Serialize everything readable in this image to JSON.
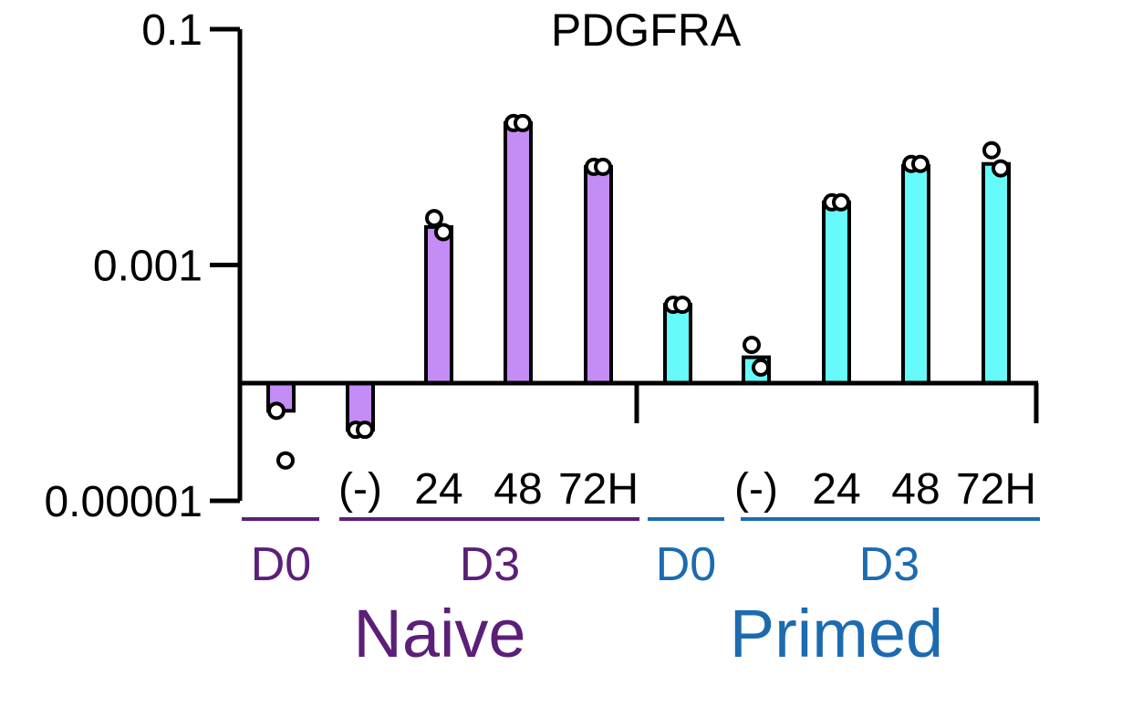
{
  "chart_data": {
    "type": "bar",
    "title": "PDGFRA",
    "yscale": "log",
    "ylim": [
      1e-05,
      0.1
    ],
    "baseline": 0.0001,
    "ytick_values": [
      0.1,
      0.001,
      1e-05
    ],
    "ytick_labels": [
      "0.1",
      "0.001",
      "0.00001"
    ],
    "categories": [
      "",
      "(-)",
      "24",
      "48",
      "72H",
      "",
      "(-)",
      "24",
      "48",
      "72H"
    ],
    "values": [
      5.8e-05,
      4e-05,
      0.0021,
      0.016,
      0.0068,
      0.00046,
      0.000165,
      0.0034,
      0.0069,
      0.0072
    ],
    "points": [
      [
        5.8e-05,
        2.2e-05
      ],
      [
        4e-05,
        4e-05
      ],
      [
        0.0025,
        0.0019
      ],
      [
        0.016,
        0.016
      ],
      [
        0.0068,
        0.0068
      ],
      [
        0.00046,
        0.00046
      ],
      [
        0.00021,
        0.000135
      ],
      [
        0.0034,
        0.0034
      ],
      [
        0.0072,
        0.0072
      ],
      [
        0.0094,
        0.0066
      ]
    ],
    "bar_colors": [
      "#c48cf5",
      "#c48cf5",
      "#c48cf5",
      "#c48cf5",
      "#c48cf5",
      "#66fafa",
      "#66fafa",
      "#66fafa",
      "#66fafa",
      "#66fafa"
    ],
    "groups": [
      {
        "label": "D0",
        "color": "#5b1f78"
      },
      {
        "label": "D3",
        "color": "#5b1f78"
      },
      {
        "label": "D0",
        "color": "#1c6bb0"
      },
      {
        "label": "D3",
        "color": "#1c6bb0"
      }
    ],
    "conditions": [
      {
        "label": "Naive",
        "color": "#5b1f78"
      },
      {
        "label": "Primed",
        "color": "#1c6bb0"
      }
    ]
  }
}
